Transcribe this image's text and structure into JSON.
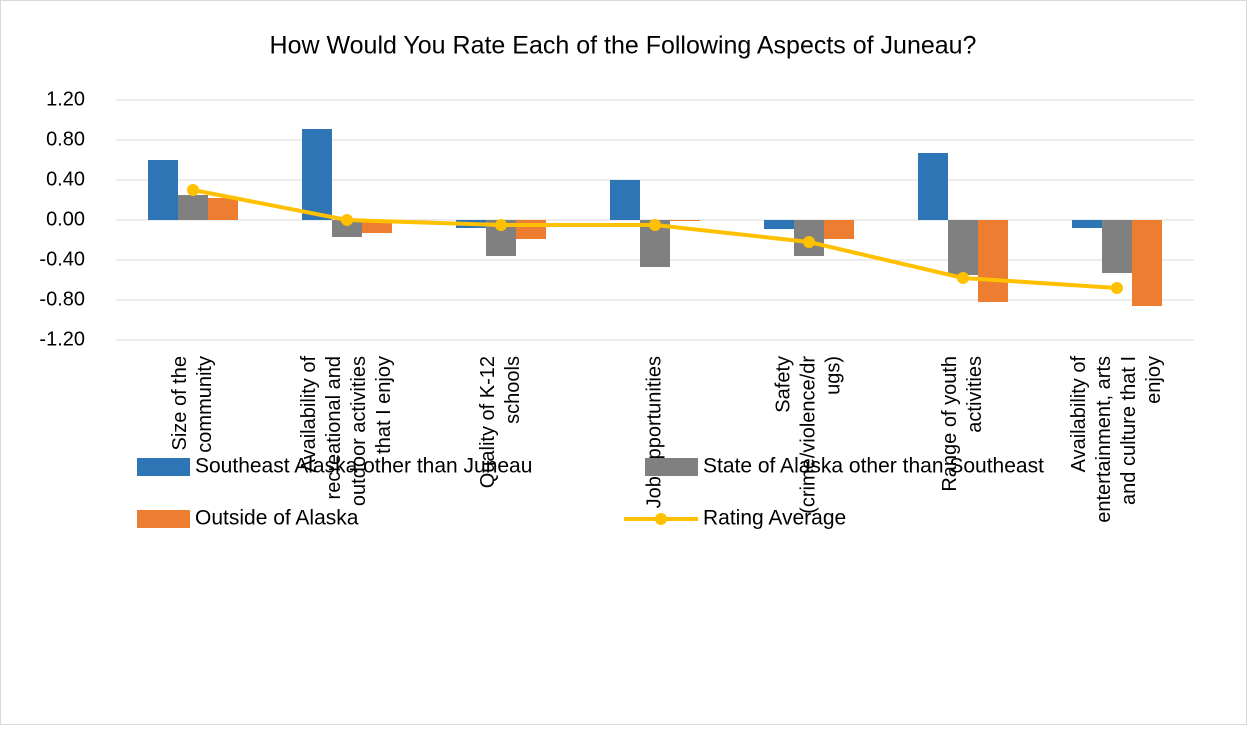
{
  "chart_data": {
    "type": "bar-line",
    "title": "How Would You Rate Each of the Following Aspects of Juneau?",
    "categories": [
      [
        "Size of the",
        "community"
      ],
      [
        "Availability of",
        "recreational and",
        "outdoor activities",
        "that I enjoy"
      ],
      [
        "Quality of K-12",
        "schools"
      ],
      [
        "Job opportunities"
      ],
      [
        "Safety",
        "(crime/violence/dr",
        "ugs)"
      ],
      [
        "Range of youth",
        "activities"
      ],
      [
        "Availability of",
        "entertainment, arts",
        "and culture that I",
        "enjoy"
      ]
    ],
    "series": [
      {
        "name": "Southeast Alaska other than Juneau",
        "type": "bar",
        "color": "#2e75b6",
        "values": [
          0.6,
          0.91,
          -0.08,
          0.4,
          -0.09,
          0.67,
          -0.08
        ]
      },
      {
        "name": "State of Alaska other than Southeast",
        "type": "bar",
        "color": "#808080",
        "values": [
          0.25,
          -0.17,
          -0.36,
          -0.47,
          -0.36,
          -0.55,
          -0.53
        ]
      },
      {
        "name": "Outside of Alaska",
        "type": "bar",
        "color": "#ed7d31",
        "values": [
          0.22,
          -0.13,
          -0.19,
          -0.01,
          -0.19,
          -0.82,
          -0.86
        ]
      },
      {
        "name": "Rating Average",
        "type": "line",
        "color": "#ffc000",
        "values": [
          0.3,
          0.0,
          -0.05,
          -0.05,
          -0.22,
          -0.58,
          -0.68
        ]
      }
    ],
    "ylim": [
      -1.2,
      1.2
    ],
    "yticks": [
      {
        "value": 1.2,
        "label": "1.20"
      },
      {
        "value": 0.8,
        "label": "0.80"
      },
      {
        "value": 0.4,
        "label": "0.40"
      },
      {
        "value": 0,
        "label": "0.00"
      },
      {
        "value": -0.4,
        "label": "-0.40"
      },
      {
        "value": -0.8,
        "label": "-0.80"
      },
      {
        "value": -1.2,
        "label": "-1.20"
      }
    ],
    "grid": true
  }
}
